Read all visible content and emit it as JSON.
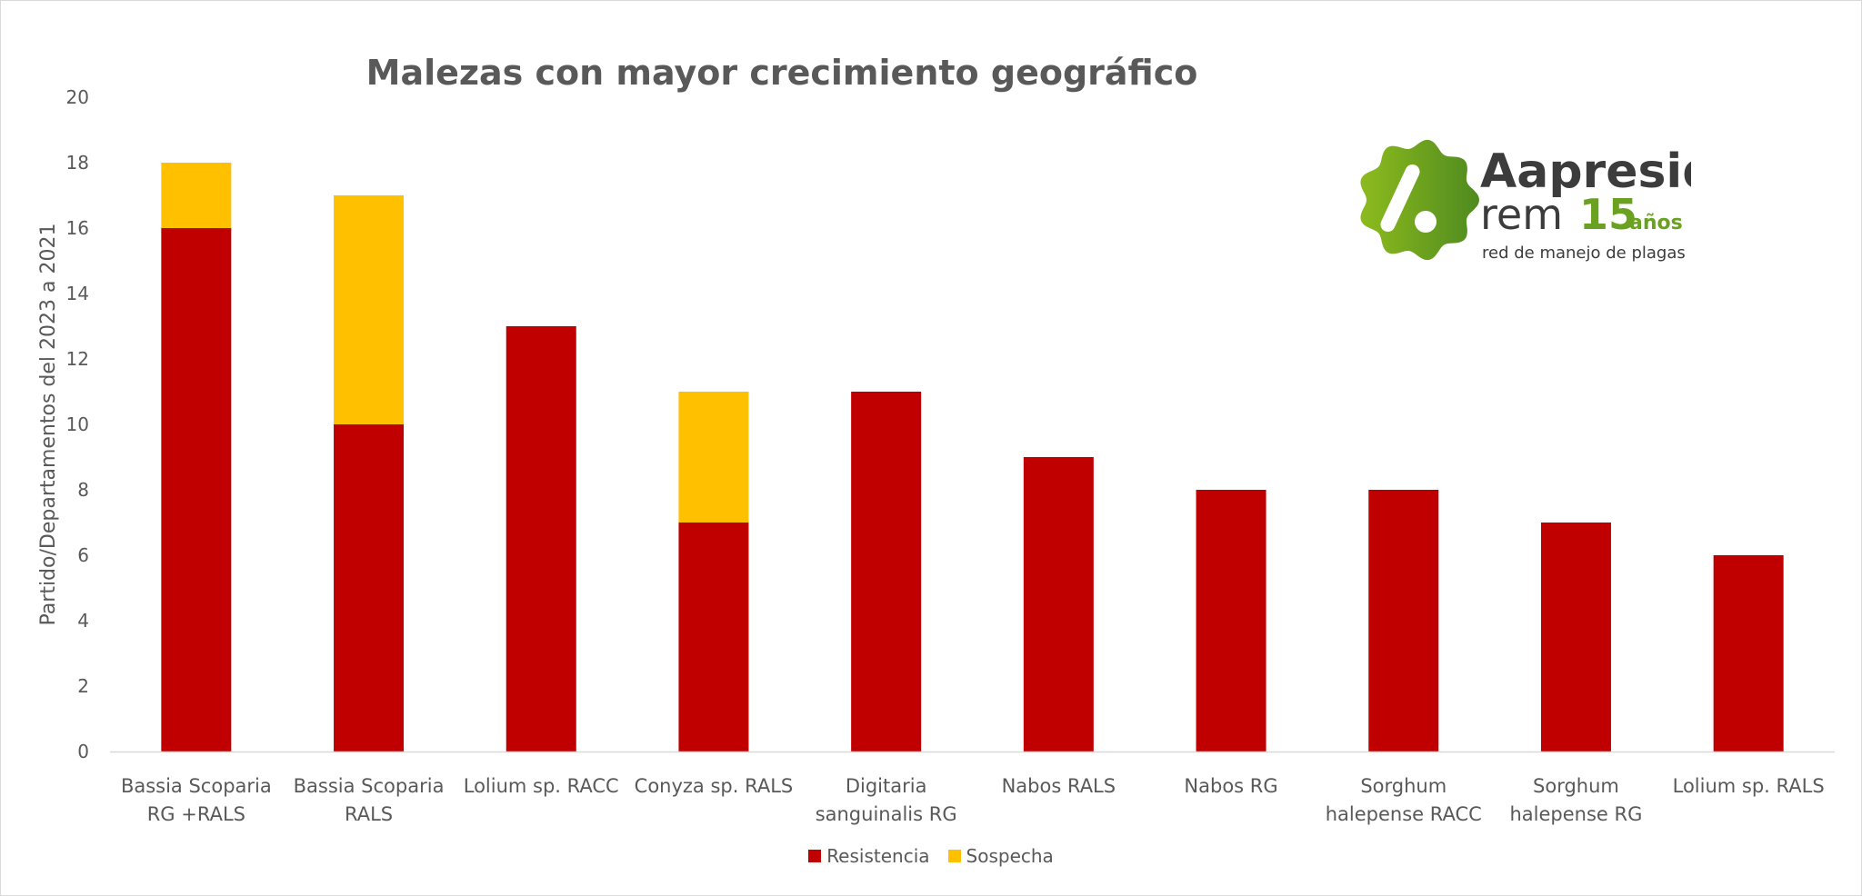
{
  "chart_data": {
    "type": "bar",
    "stacked": true,
    "title": "Malezas con mayor crecimiento geográfico",
    "xlabel": "",
    "ylabel": "Partido/Departamentos del 2023 a 2021",
    "ylim": [
      0,
      20
    ],
    "yticks": [
      0,
      2,
      4,
      6,
      8,
      10,
      12,
      14,
      16,
      18,
      20
    ],
    "grid": false,
    "legend_position": "bottom",
    "categories": [
      [
        "Bassia Scoparia",
        "RG +RALS"
      ],
      [
        "Bassia Scoparia",
        "RALS"
      ],
      [
        "Lolium sp. RACC"
      ],
      [
        "Conyza sp. RALS"
      ],
      [
        "Digitaria",
        "sanguinalis RG"
      ],
      [
        "Nabos RALS"
      ],
      [
        "Nabos RG"
      ],
      [
        "Sorghum",
        "halepense RACC"
      ],
      [
        "Sorghum",
        "halepense RG"
      ],
      [
        "Lolium sp. RALS"
      ]
    ],
    "series": [
      {
        "name": "Resistencia",
        "color": "#c00000",
        "values": [
          16,
          10,
          13,
          7,
          11,
          9,
          8,
          8,
          7,
          6
        ]
      },
      {
        "name": "Sospecha",
        "color": "#ffc000",
        "values": [
          2,
          7,
          0,
          4,
          0,
          0,
          0,
          0,
          0,
          0
        ]
      }
    ]
  },
  "logo": {
    "brand": "Aapresid",
    "sub": "rem",
    "years": "15",
    "years_suffix": "años",
    "tagline": "red de manejo de plagas",
    "color": "#6aa121"
  }
}
